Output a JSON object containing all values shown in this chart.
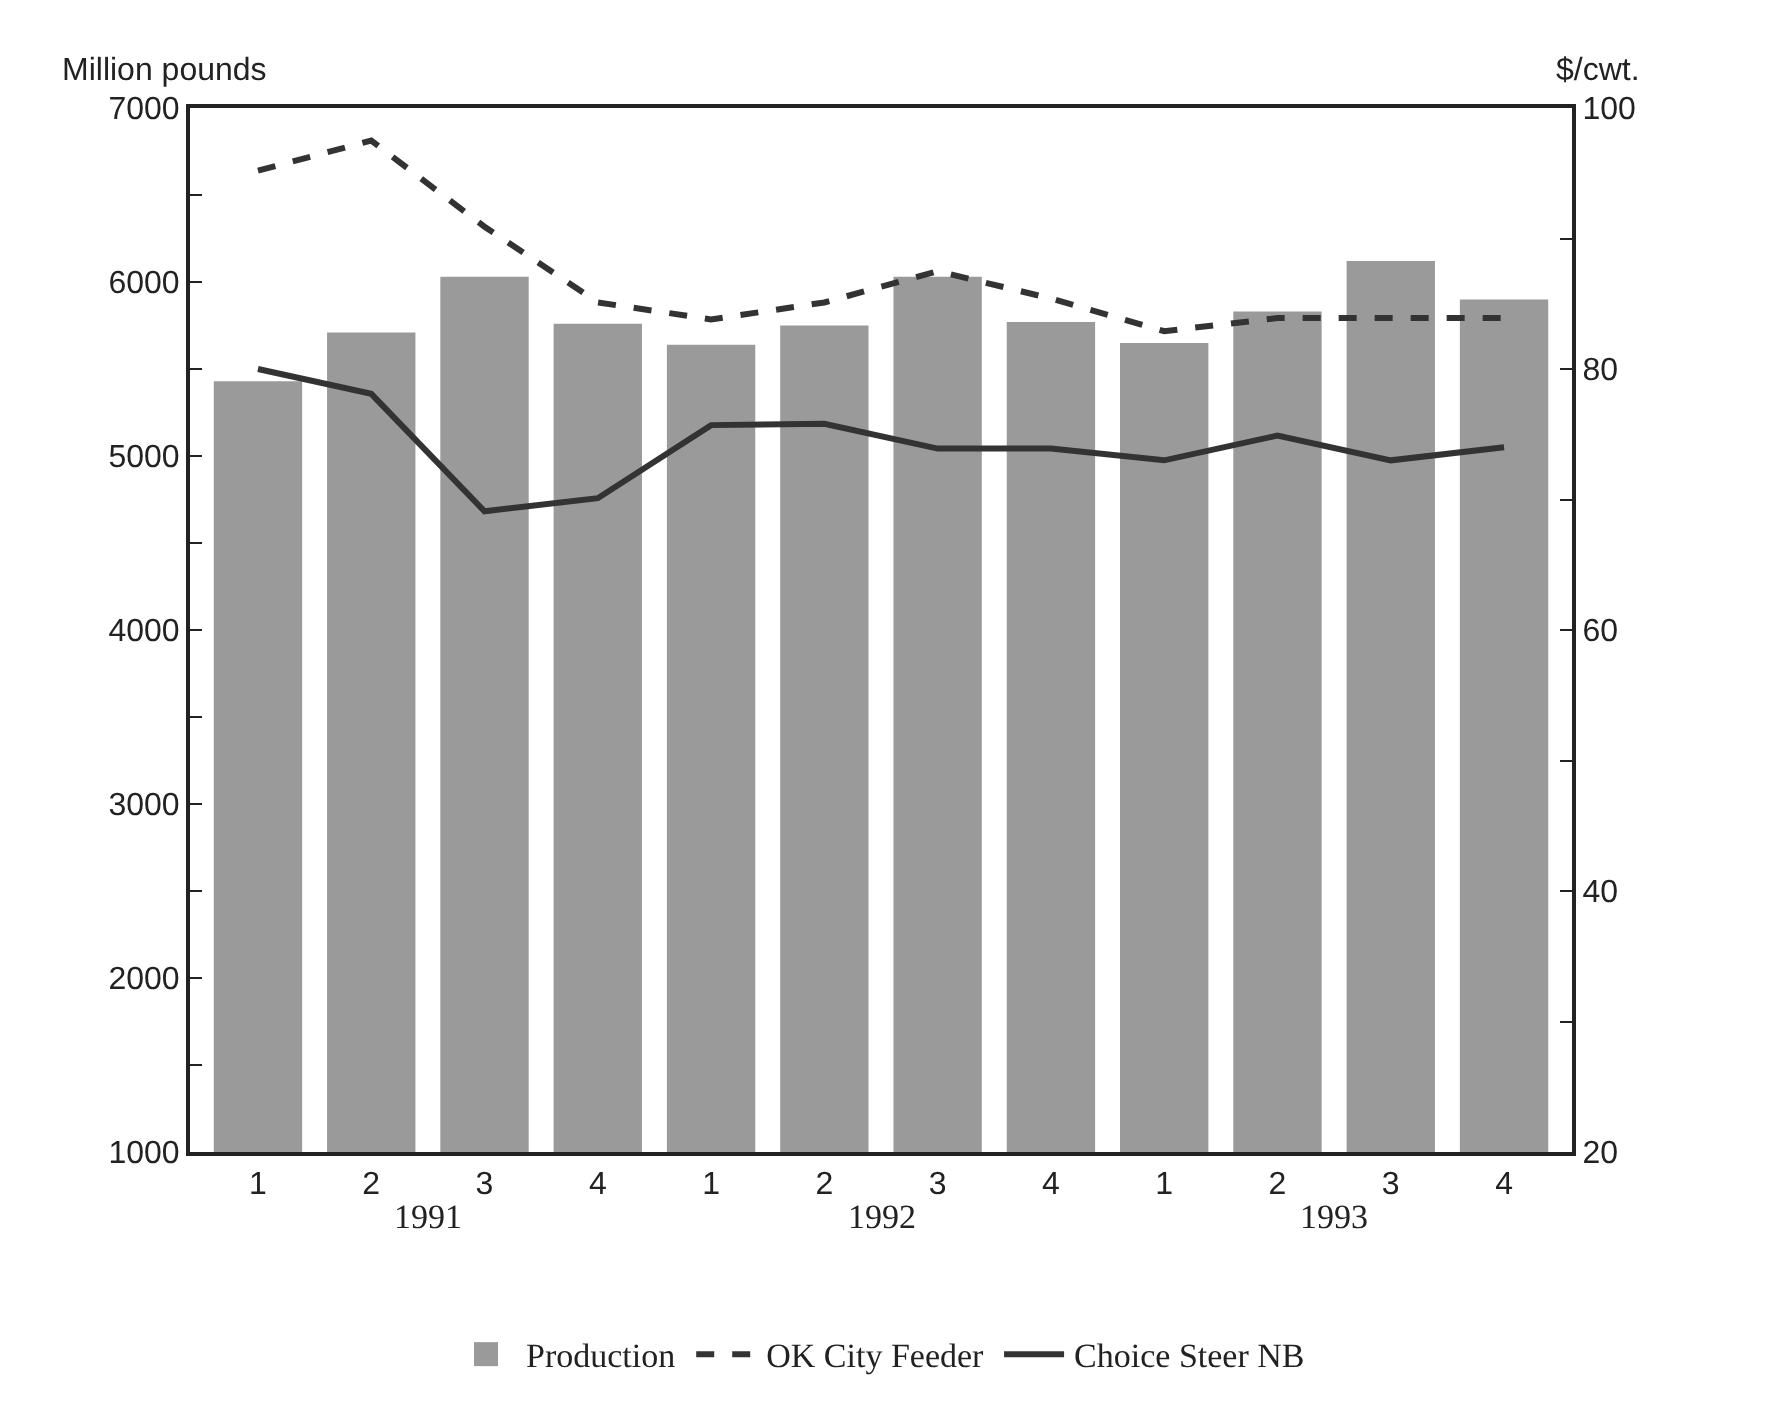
{
  "chart_data": {
    "type": "bar",
    "categories": [
      "1",
      "2",
      "3",
      "4",
      "1",
      "2",
      "3",
      "4",
      "1",
      "2",
      "3",
      "4"
    ],
    "ylabel": "Million pounds",
    "y2label": "$/cwt.",
    "annotations": [
      "1991",
      "1992",
      "1993"
    ],
    "series": [
      {
        "name": "Production",
        "color": "#9a9a9a",
        "values": [
          5430,
          5710,
          6030,
          5760,
          5640,
          5750,
          6030,
          5770,
          5650,
          5830,
          6120,
          5900
        ]
      },
      {
        "name": "OK City Feeder",
        "type": "line",
        "axis": "y2",
        "line_style": "dashed",
        "color": "#333333",
        "values": [
          95.2,
          97.5,
          90.9,
          85.1,
          83.8,
          85.1,
          87.5,
          85.4,
          82.9,
          83.9,
          83.9,
          83.9
        ]
      },
      {
        "name": "Choice Steer NB",
        "type": "line",
        "axis": "y2",
        "line_style": "solid",
        "color": "#333333",
        "values": [
          80.0,
          78.1,
          69.1,
          70.1,
          75.7,
          75.8,
          73.9,
          73.9,
          73.0,
          74.9,
          73.0,
          74.0
        ]
      }
    ],
    "ylim": [
      1000,
      7000
    ],
    "yticks": [
      1000,
      {
        "value": 1500,
        "label": null
      },
      2000,
      {
        "value": 2500,
        "label": null
      },
      3000,
      {
        "value": 3500,
        "label": null
      },
      4000,
      {
        "value": 4500,
        "label": null
      },
      5000,
      {
        "value": 5500,
        "label": null
      },
      6000,
      {
        "value": 6500,
        "label": null
      },
      7000
    ],
    "y2lim": [
      20,
      100
    ],
    "y2ticks": [
      20,
      {
        "value": 30,
        "label": null
      },
      40,
      {
        "value": 50,
        "label": null
      },
      60,
      {
        "value": 70,
        "label": null
      },
      80,
      {
        "value": 90,
        "label": null
      },
      100
    ],
    "grid": false,
    "legend": "bottom",
    "marker": "none"
  }
}
